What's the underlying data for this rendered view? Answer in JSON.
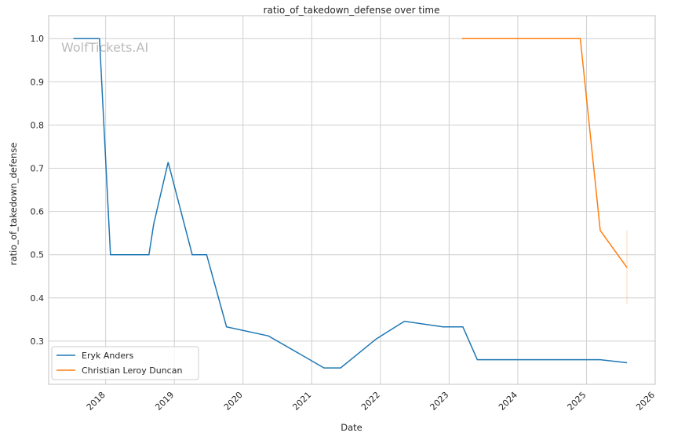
{
  "chart_data": {
    "type": "line",
    "title": "ratio_of_takedown_defense over time",
    "xlabel": "Date",
    "ylabel": "ratio_of_takedown_defense",
    "watermark": "WolfTickets.AI",
    "xlim": [
      2017.17,
      2026.0
    ],
    "ylim": [
      0.2,
      1.053
    ],
    "xticks": [
      "2018",
      "2019",
      "2020",
      "2021",
      "2022",
      "2023",
      "2024",
      "2025",
      "2026"
    ],
    "yticks": [
      "0.3",
      "0.4",
      "0.5",
      "0.6",
      "0.7",
      "0.8",
      "0.9",
      "1.0"
    ],
    "grid": true,
    "legend_position": "lower-left",
    "series": [
      {
        "name": "Eryk Anders",
        "color": "#1f77b4",
        "x": [
          2017.53,
          2017.91,
          2018.07,
          2018.63,
          2018.7,
          2018.91,
          2019.26,
          2019.47,
          2019.76,
          2020.37,
          2021.18,
          2021.42,
          2021.94,
          2022.35,
          2022.91,
          2023.2,
          2023.41,
          2025.2,
          2025.59
        ],
        "y": [
          1.0,
          1.0,
          0.5,
          0.5,
          0.571,
          0.714,
          0.5,
          0.5,
          0.333,
          0.312,
          0.238,
          0.238,
          0.305,
          0.346,
          0.333,
          0.333,
          0.257,
          0.257,
          0.25
        ]
      },
      {
        "name": "Christian Leroy Duncan",
        "color": "#ff7f0e",
        "x": [
          2023.19,
          2024.91,
          2025.2,
          2025.59
        ],
        "y": [
          1.0,
          1.0,
          0.556,
          0.47
        ],
        "ci_last": [
          0.385,
          0.556
        ]
      }
    ]
  }
}
